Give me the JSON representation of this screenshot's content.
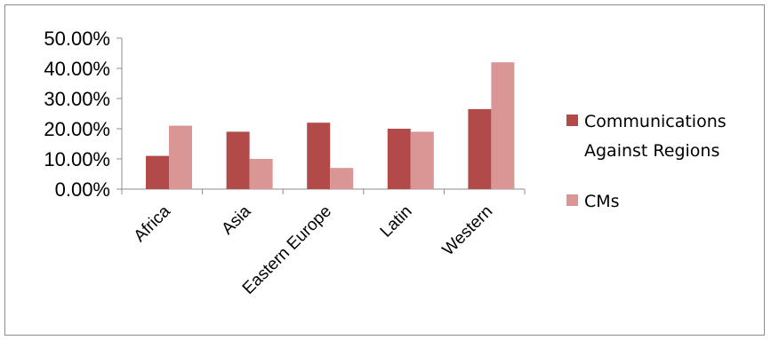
{
  "chart_data": {
    "type": "bar",
    "categories": [
      "Africa",
      "Asia",
      "Eastern Europe",
      "Latin",
      "Western"
    ],
    "series": [
      {
        "name": "Communications Against Regions",
        "values": [
          0.11,
          0.19,
          0.22,
          0.2,
          0.265
        ],
        "color": "#b24a4a"
      },
      {
        "name": "CMs",
        "values": [
          0.21,
          0.1,
          0.07,
          0.19,
          0.42
        ],
        "color": "#d99694"
      }
    ],
    "y_ticks": [
      "0.00%",
      "10.00%",
      "20.00%",
      "30.00%",
      "40.00%",
      "50.00%"
    ],
    "ylim": [
      0,
      0.5
    ],
    "legend_position": "right",
    "legend_lines": [
      [
        "Communications",
        "Against Regions"
      ],
      [
        "CMs"
      ]
    ],
    "grid": false
  }
}
